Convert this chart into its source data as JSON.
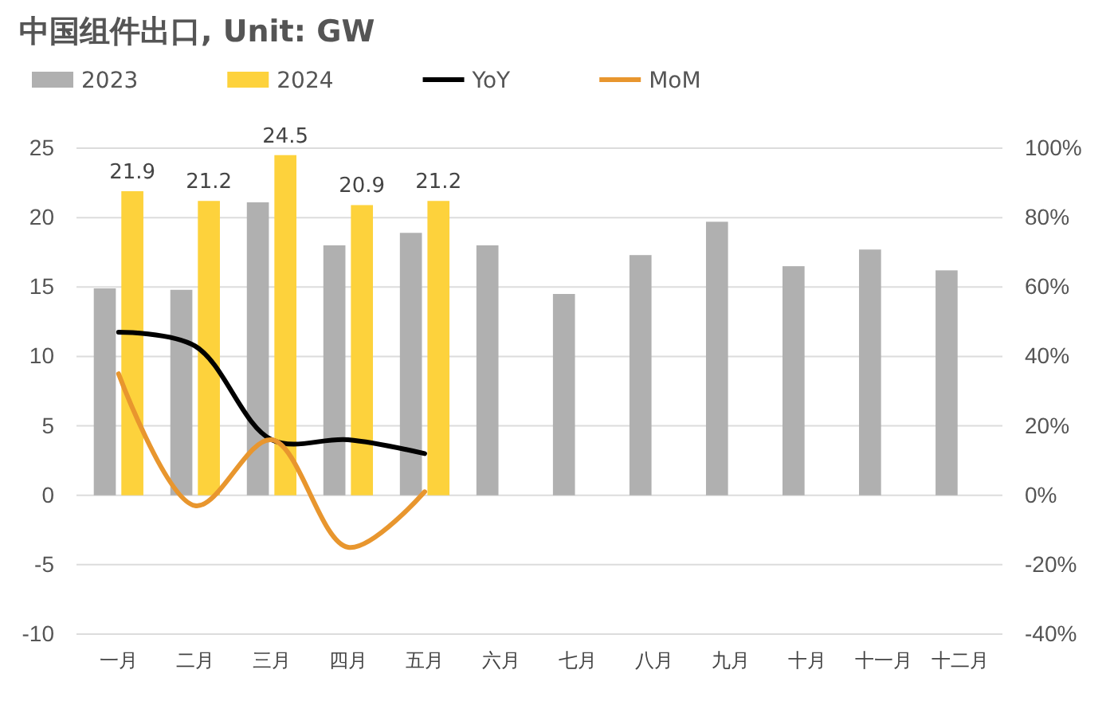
{
  "chart_data": {
    "type": "bar",
    "title": "中国组件出口, Unit: GW",
    "categories": [
      "一月",
      "二月",
      "三月",
      "四月",
      "五月",
      "六月",
      "七月",
      "八月",
      "九月",
      "十月",
      "十一月",
      "十二月"
    ],
    "series": [
      {
        "name": "2023",
        "color": "#b0b0b0",
        "values": [
          14.9,
          14.8,
          21.1,
          18.0,
          18.9,
          18.0,
          14.5,
          17.3,
          19.7,
          16.5,
          17.7,
          16.2
        ]
      },
      {
        "name": "2024",
        "color": "#fdd23c",
        "values": [
          21.9,
          21.2,
          24.5,
          20.9,
          21.2,
          null,
          null,
          null,
          null,
          null,
          null,
          null
        ],
        "value_labels": [
          "21.9",
          "21.2",
          "24.5",
          "20.9",
          "21.2",
          null,
          null,
          null,
          null,
          null,
          null,
          null
        ]
      },
      {
        "name": "YoY",
        "type": "line",
        "axis": "y2",
        "color": "#000000",
        "values": [
          47,
          43,
          16,
          16,
          12,
          null,
          null,
          null,
          null,
          null,
          null,
          null
        ]
      },
      {
        "name": "MoM",
        "type": "line",
        "axis": "y2",
        "color": "#e8962e",
        "values": [
          35,
          -3,
          16,
          -15,
          1,
          null,
          null,
          null,
          null,
          null,
          null,
          null
        ]
      }
    ],
    "ylim": [
      -10,
      25
    ],
    "yticks": [
      -10,
      -5,
      0,
      5,
      10,
      15,
      20,
      25
    ],
    "y2lim": [
      -40,
      100
    ],
    "y2ticks": [
      {
        "value": -40,
        "label": "-40%"
      },
      {
        "value": -20,
        "label": "-20%"
      },
      {
        "value": 0,
        "label": "0%"
      },
      {
        "value": 20,
        "label": "20%"
      },
      {
        "value": 40,
        "label": "40%"
      },
      {
        "value": 60,
        "label": "60%"
      },
      {
        "value": 80,
        "label": "80%"
      },
      {
        "value": 100,
        "label": "100%"
      }
    ],
    "grid": "y",
    "legend": "top left",
    "marker": "none",
    "line_style": "solid"
  }
}
